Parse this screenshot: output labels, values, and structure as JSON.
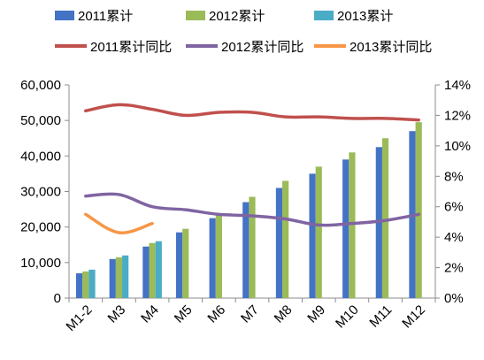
{
  "chart_data": {
    "type": "bar",
    "categories": [
      "M1-2",
      "M3",
      "M4",
      "M5",
      "M6",
      "M7",
      "M8",
      "M9",
      "M10",
      "M11",
      "M12"
    ],
    "bar_series": [
      {
        "name": "2011累计",
        "color": "#4472C4",
        "values": [
          7000,
          11000,
          14500,
          18500,
          22500,
          27000,
          31000,
          35000,
          39000,
          42500,
          47000
        ]
      },
      {
        "name": "2012累计",
        "color": "#9BBB59",
        "values": [
          7500,
          11500,
          15500,
          19500,
          23500,
          28500,
          33000,
          37000,
          41000,
          45000,
          49500
        ]
      },
      {
        "name": "2013累计",
        "color": "#4BACC6",
        "values": [
          8000,
          12000,
          16000,
          null,
          null,
          null,
          null,
          null,
          null,
          null,
          null
        ]
      }
    ],
    "line_series": [
      {
        "name": "2011累计同比",
        "color": "#C0504D",
        "values": [
          12.3,
          12.7,
          12.4,
          12.0,
          12.2,
          12.2,
          11.9,
          11.9,
          11.8,
          11.8,
          11.7
        ]
      },
      {
        "name": "2012累计同比",
        "color": "#8064A2",
        "values": [
          6.7,
          6.8,
          6.0,
          5.8,
          5.5,
          5.4,
          5.2,
          4.8,
          4.9,
          5.1,
          5.5
        ]
      },
      {
        "name": "2013累计同比",
        "color": "#F79646",
        "values": [
          5.5,
          4.3,
          4.9,
          null,
          null,
          null,
          null,
          null,
          null,
          null,
          null
        ]
      }
    ],
    "y_left": {
      "min": 0,
      "max": 60000,
      "ticks": [
        "0",
        "10,000",
        "20,000",
        "30,000",
        "40,000",
        "50,000",
        "60,000"
      ]
    },
    "y_right": {
      "min": 0,
      "max": 14,
      "ticks": [
        "0%",
        "2%",
        "4%",
        "6%",
        "8%",
        "10%",
        "12%",
        "14%"
      ]
    },
    "grid": false,
    "legend_position": "top"
  }
}
